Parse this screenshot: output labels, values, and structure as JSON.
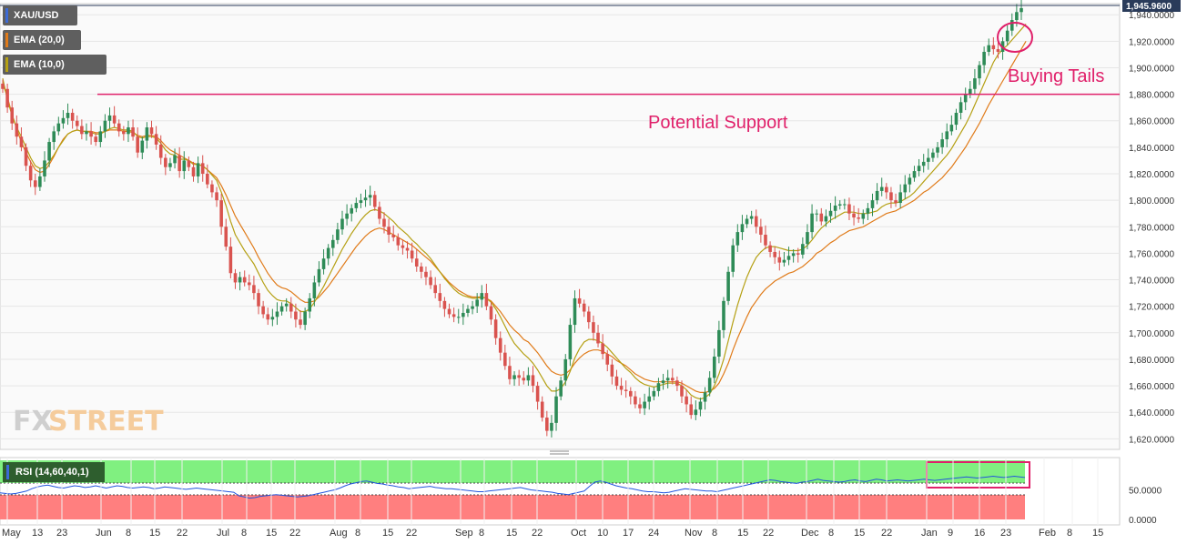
{
  "legend": {
    "symbol": "XAU/USD",
    "ema20": "EMA (20,0)",
    "ema10": "EMA (10,0)",
    "rsi": "RSI (14,60,40,1)"
  },
  "brand": {
    "fx": "FX",
    "street": "STREET"
  },
  "annotations": {
    "support": "Potential Support",
    "tails": "Buying Tails",
    "support_level": 1880
  },
  "colors": {
    "up": "#2e8b57",
    "down": "#d9534f",
    "ema20": "#e07b1a",
    "ema10": "#b5a014",
    "annotation": "#e0206a",
    "rsi_line": "#2255dd",
    "rsi_over": "#80f080",
    "rsi_under": "#ff7f7f",
    "price_tag": "#2a3b5a"
  },
  "chart_data": [
    {
      "type": "candlestick",
      "title": "XAU/USD",
      "last_price": "1,945.9600",
      "ylim": [
        1612,
        1947
      ],
      "y_ticks": [
        "1,940.0000",
        "1,920.0000",
        "1,900.0000",
        "1,880.0000",
        "1,860.0000",
        "1,840.0000",
        "1,820.0000",
        "1,800.0000",
        "1,780.0000",
        "1,760.0000",
        "1,740.0000",
        "1,720.0000",
        "1,700.0000",
        "1,680.0000",
        "1,660.0000",
        "1,640.0000",
        "1,620.0000"
      ],
      "x_ticks": [
        "May",
        "13",
        "23",
        "Jun",
        "8",
        "15",
        "22",
        "Jul",
        "8",
        "15",
        "22",
        "Aug",
        "8",
        "15",
        "22",
        "Sep",
        "8",
        "15",
        "22",
        "Oct",
        "10",
        "17",
        "24",
        "Nov",
        "8",
        "15",
        "22",
        "Dec",
        "8",
        "15",
        "22",
        "Jan",
        "9",
        "16",
        "23",
        "Feb",
        "8",
        "15"
      ],
      "closes": [
        1884,
        1870,
        1858,
        1848,
        1840,
        1826,
        1815,
        1810,
        1818,
        1830,
        1844,
        1852,
        1858,
        1862,
        1866,
        1860,
        1856,
        1850,
        1852,
        1848,
        1844,
        1852,
        1860,
        1864,
        1858,
        1852,
        1850,
        1855,
        1848,
        1836,
        1845,
        1855,
        1850,
        1842,
        1832,
        1825,
        1828,
        1834,
        1822,
        1830,
        1825,
        1818,
        1828,
        1820,
        1812,
        1806,
        1800,
        1780,
        1765,
        1745,
        1738,
        1742,
        1738,
        1736,
        1730,
        1720,
        1714,
        1710,
        1712,
        1716,
        1720,
        1722,
        1716,
        1710,
        1706,
        1716,
        1726,
        1738,
        1748,
        1756,
        1764,
        1770,
        1778,
        1786,
        1790,
        1794,
        1798,
        1800,
        1802,
        1804,
        1795,
        1786,
        1780,
        1774,
        1772,
        1766,
        1764,
        1762,
        1756,
        1750,
        1746,
        1742,
        1736,
        1730,
        1724,
        1718,
        1714,
        1712,
        1712,
        1715,
        1718,
        1720,
        1725,
        1730,
        1720,
        1710,
        1696,
        1685,
        1675,
        1665,
        1668,
        1666,
        1664,
        1668,
        1660,
        1648,
        1636,
        1626,
        1632,
        1652,
        1664,
        1680,
        1706,
        1726,
        1722,
        1716,
        1708,
        1700,
        1692,
        1684,
        1676,
        1667,
        1660,
        1657,
        1656,
        1652,
        1646,
        1643,
        1648,
        1652,
        1656,
        1662,
        1664,
        1666,
        1664,
        1660,
        1652,
        1646,
        1638,
        1642,
        1648,
        1655,
        1666,
        1682,
        1702,
        1724,
        1746,
        1766,
        1776,
        1782,
        1786,
        1788,
        1780,
        1774,
        1766,
        1761,
        1757,
        1753,
        1755,
        1758,
        1760,
        1759,
        1767,
        1776,
        1790,
        1790,
        1784,
        1788,
        1792,
        1796,
        1797,
        1797,
        1790,
        1787,
        1786,
        1790,
        1794,
        1800,
        1807,
        1810,
        1806,
        1800,
        1798,
        1806,
        1812,
        1817,
        1822,
        1826,
        1829,
        1832,
        1836,
        1840,
        1846,
        1852,
        1857,
        1866,
        1874,
        1880,
        1884,
        1892,
        1902,
        1912,
        1917,
        1914,
        1912,
        1920,
        1928,
        1936,
        1942,
        1945
      ],
      "ema20": [
        1888,
        1878,
        1865,
        1854,
        1844,
        1836,
        1829,
        1823,
        1821,
        1822,
        1827,
        1833,
        1840,
        1846,
        1850,
        1852,
        1853,
        1852,
        1852,
        1852,
        1851,
        1851,
        1852,
        1853,
        1853,
        1853,
        1852,
        1852,
        1851,
        1849,
        1848,
        1849,
        1849,
        1848,
        1845,
        1841,
        1838,
        1836,
        1834,
        1832,
        1830,
        1828,
        1827,
        1826,
        1823,
        1820,
        1817,
        1811,
        1804,
        1796,
        1788,
        1782,
        1776,
        1770,
        1764,
        1757,
        1751,
        1745,
        1740,
        1736,
        1734,
        1733,
        1731,
        1728,
        1725,
        1723,
        1723,
        1724,
        1727,
        1731,
        1735,
        1740,
        1745,
        1750,
        1755,
        1760,
        1765,
        1769,
        1773,
        1776,
        1778,
        1779,
        1778,
        1776,
        1774,
        1772,
        1770,
        1768,
        1766,
        1763,
        1760,
        1757,
        1754,
        1750,
        1746,
        1742,
        1738,
        1735,
        1732,
        1730,
        1728,
        1727,
        1727,
        1727,
        1726,
        1724,
        1720,
        1716,
        1711,
        1706,
        1702,
        1699,
        1695,
        1693,
        1689,
        1685,
        1680,
        1675,
        1671,
        1669,
        1668,
        1669,
        1672,
        1677,
        1681,
        1684,
        1686,
        1687,
        1687,
        1686,
        1684,
        1682,
        1679,
        1677,
        1675,
        1672,
        1669,
        1667,
        1665,
        1664,
        1663,
        1663,
        1663,
        1663,
        1663,
        1663,
        1662,
        1660,
        1658,
        1656,
        1655,
        1655,
        1656,
        1658,
        1662,
        1669,
        1677,
        1687,
        1696,
        1704,
        1712,
        1719,
        1724,
        1729,
        1733,
        1736,
        1739,
        1741,
        1743,
        1745,
        1746,
        1748,
        1750,
        1753,
        1756,
        1760,
        1762,
        1765,
        1768,
        1770,
        1773,
        1775,
        1777,
        1778,
        1779,
        1780,
        1782,
        1784,
        1786,
        1788,
        1790,
        1791,
        1792,
        1794,
        1796,
        1798,
        1800,
        1803,
        1806,
        1808,
        1811,
        1814,
        1817,
        1821,
        1825,
        1830,
        1835,
        1840,
        1846,
        1852,
        1858,
        1865,
        1872,
        1878,
        1884,
        1890,
        1896,
        1902,
        1908,
        1914,
        1920
      ],
      "ema10": [
        1892,
        1876,
        1864,
        1855,
        1848,
        1840,
        1832,
        1826,
        1824,
        1825,
        1829,
        1834,
        1840,
        1845,
        1850,
        1852,
        1853,
        1852,
        1852,
        1851,
        1850,
        1850,
        1852,
        1854,
        1855,
        1854,
        1853,
        1853,
        1852,
        1848,
        1847,
        1848,
        1848,
        1847,
        1843,
        1838,
        1835,
        1834,
        1831,
        1831,
        1830,
        1827,
        1827,
        1826,
        1823,
        1819,
        1815,
        1806,
        1796,
        1784,
        1774,
        1768,
        1762,
        1757,
        1752,
        1745,
        1738,
        1732,
        1728,
        1725,
        1724,
        1724,
        1722,
        1719,
        1716,
        1716,
        1718,
        1723,
        1729,
        1735,
        1742,
        1749,
        1756,
        1763,
        1769,
        1775,
        1780,
        1785,
        1789,
        1792,
        1793,
        1792,
        1790,
        1787,
        1784,
        1780,
        1777,
        1774,
        1770,
        1767,
        1763,
        1760,
        1756,
        1751,
        1746,
        1741,
        1737,
        1733,
        1730,
        1728,
        1727,
        1726,
        1726,
        1727,
        1726,
        1723,
        1718,
        1712,
        1705,
        1698,
        1692,
        1688,
        1684,
        1681,
        1677,
        1672,
        1666,
        1660,
        1656,
        1656,
        1658,
        1663,
        1671,
        1681,
        1688,
        1693,
        1695,
        1695,
        1694,
        1692,
        1689,
        1685,
        1681,
        1677,
        1673,
        1670,
        1666,
        1663,
        1661,
        1660,
        1659,
        1660,
        1661,
        1662,
        1662,
        1662,
        1660,
        1657,
        1653,
        1651,
        1650,
        1651,
        1654,
        1660,
        1669,
        1680,
        1694,
        1708,
        1721,
        1732,
        1742,
        1750,
        1757,
        1761,
        1764,
        1765,
        1765,
        1764,
        1763,
        1762,
        1762,
        1762,
        1763,
        1766,
        1770,
        1775,
        1779,
        1782,
        1785,
        1787,
        1789,
        1791,
        1791,
        1791,
        1790,
        1790,
        1790,
        1791,
        1792,
        1795,
        1797,
        1798,
        1798,
        1799,
        1801,
        1803,
        1806,
        1810,
        1814,
        1818,
        1822,
        1826,
        1830,
        1834,
        1839,
        1845,
        1851,
        1857,
        1864,
        1872,
        1880,
        1888,
        1896,
        1904,
        1910,
        1914,
        1917,
        1921,
        1925,
        1929,
        1933
      ]
    },
    {
      "type": "line",
      "title": "RSI (14,60,40,1)",
      "ylim": [
        0,
        100
      ],
      "y_ticks": [
        "50.0000",
        "0.0000"
      ],
      "bands": {
        "over": 60,
        "under": 40
      },
      "values": [
        45,
        44,
        43,
        44,
        46,
        48,
        52,
        55,
        57,
        58,
        56,
        54,
        53,
        55,
        57,
        56,
        54,
        55,
        57,
        55,
        53,
        55,
        57,
        56,
        54,
        53,
        54,
        55,
        54,
        52,
        53,
        55,
        54,
        53,
        52,
        51,
        52,
        53,
        52,
        51,
        50,
        49,
        48,
        47,
        46,
        40,
        38,
        36,
        37,
        39,
        40,
        41,
        42,
        41,
        40,
        39,
        38,
        39,
        40,
        42,
        44,
        46,
        48,
        50,
        53,
        57,
        60,
        62,
        64,
        65,
        63,
        61,
        60,
        58,
        57,
        55,
        54,
        52,
        53,
        54,
        55,
        56,
        54,
        53,
        52,
        52,
        51,
        50,
        49,
        48,
        47,
        47,
        48,
        49,
        50,
        51,
        52,
        53,
        54,
        52,
        50,
        49,
        48,
        47,
        46,
        44,
        43,
        42,
        44,
        46,
        48,
        56,
        63,
        65,
        63,
        60,
        57,
        55,
        53,
        52,
        50,
        48,
        47,
        47,
        46,
        45,
        46,
        48,
        50,
        52,
        51,
        50,
        49,
        48,
        48,
        47,
        49,
        51,
        53,
        55,
        57,
        59,
        61,
        63,
        65,
        67,
        66,
        64,
        63,
        62,
        61,
        63,
        64,
        66,
        68,
        66,
        65,
        64,
        63,
        64,
        66,
        67,
        65,
        64,
        66,
        68,
        67,
        65,
        66,
        67,
        66,
        65,
        66,
        67,
        68,
        67,
        66,
        67,
        68,
        69,
        70,
        71,
        72,
        71,
        70,
        71,
        72,
        73,
        72,
        71,
        72,
        73,
        72,
        71
      ]
    }
  ]
}
